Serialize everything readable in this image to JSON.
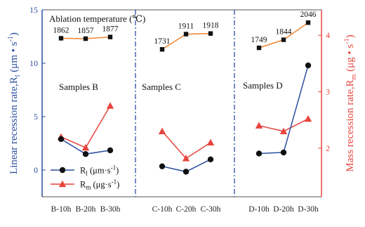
{
  "chart_data": {
    "type": "line",
    "left_axis": {
      "label": "Linear recession rate,R",
      "label_sub": "l",
      "label_unit": "(μm • s",
      "label_sup": "-1",
      "label_close": ")",
      "ylim": [
        -2.5,
        15
      ],
      "ticks": [
        0,
        5,
        10,
        15
      ],
      "color": "#2b4ea0"
    },
    "right_axis": {
      "label": "Mass recession rate,R",
      "label_sub": "m",
      "label_unit": "(μg • s",
      "label_sup": "-1",
      "label_close": ")",
      "ylim": [
        1.14,
        4.45
      ],
      "ticks": [
        2,
        3,
        4
      ],
      "color": "#e8443c"
    },
    "groups": [
      {
        "name": "Samples B",
        "categories": [
          "B-10h",
          "B-20h",
          "B-30h"
        ],
        "linear": [
          2.9,
          1.5,
          1.85
        ],
        "mass": [
          2.2,
          2.01,
          2.75
        ],
        "temperature": [
          1862,
          1857,
          1877
        ]
      },
      {
        "name": "Samples C",
        "categories": [
          "C-10h",
          "C-20h",
          "C-30h"
        ],
        "linear": [
          0.35,
          -0.15,
          1.0
        ],
        "mass": [
          2.3,
          1.82,
          2.1
        ],
        "temperature": [
          1731,
          1911,
          1918
        ]
      },
      {
        "name": "Samples D",
        "categories": [
          "D-10h",
          "D-20h",
          "D-30h"
        ],
        "linear": [
          1.55,
          1.65,
          9.8
        ],
        "mass": [
          2.4,
          2.3,
          2.52
        ],
        "temperature": [
          1749,
          1844,
          2046
        ]
      }
    ],
    "temperature_title": "Ablation temperature (℃)",
    "temperature_scale": {
      "min": 1731,
      "max": 2046,
      "y_low": 11.3,
      "y_high": 13.8
    },
    "temperature_color": "#f28a3a",
    "legend": [
      {
        "name": "R",
        "sub": "l",
        "unit": " (μm·s",
        "sup": "-1",
        "close": ")",
        "color": "#1a1a1a",
        "marker": "circle"
      },
      {
        "name": "R",
        "sub": "m",
        "unit": " (μg·s",
        "sup": "-1",
        "close": ")",
        "color": "#e8443c",
        "marker": "triangle"
      }
    ],
    "legend_position": "bottom-left",
    "grid": false
  }
}
